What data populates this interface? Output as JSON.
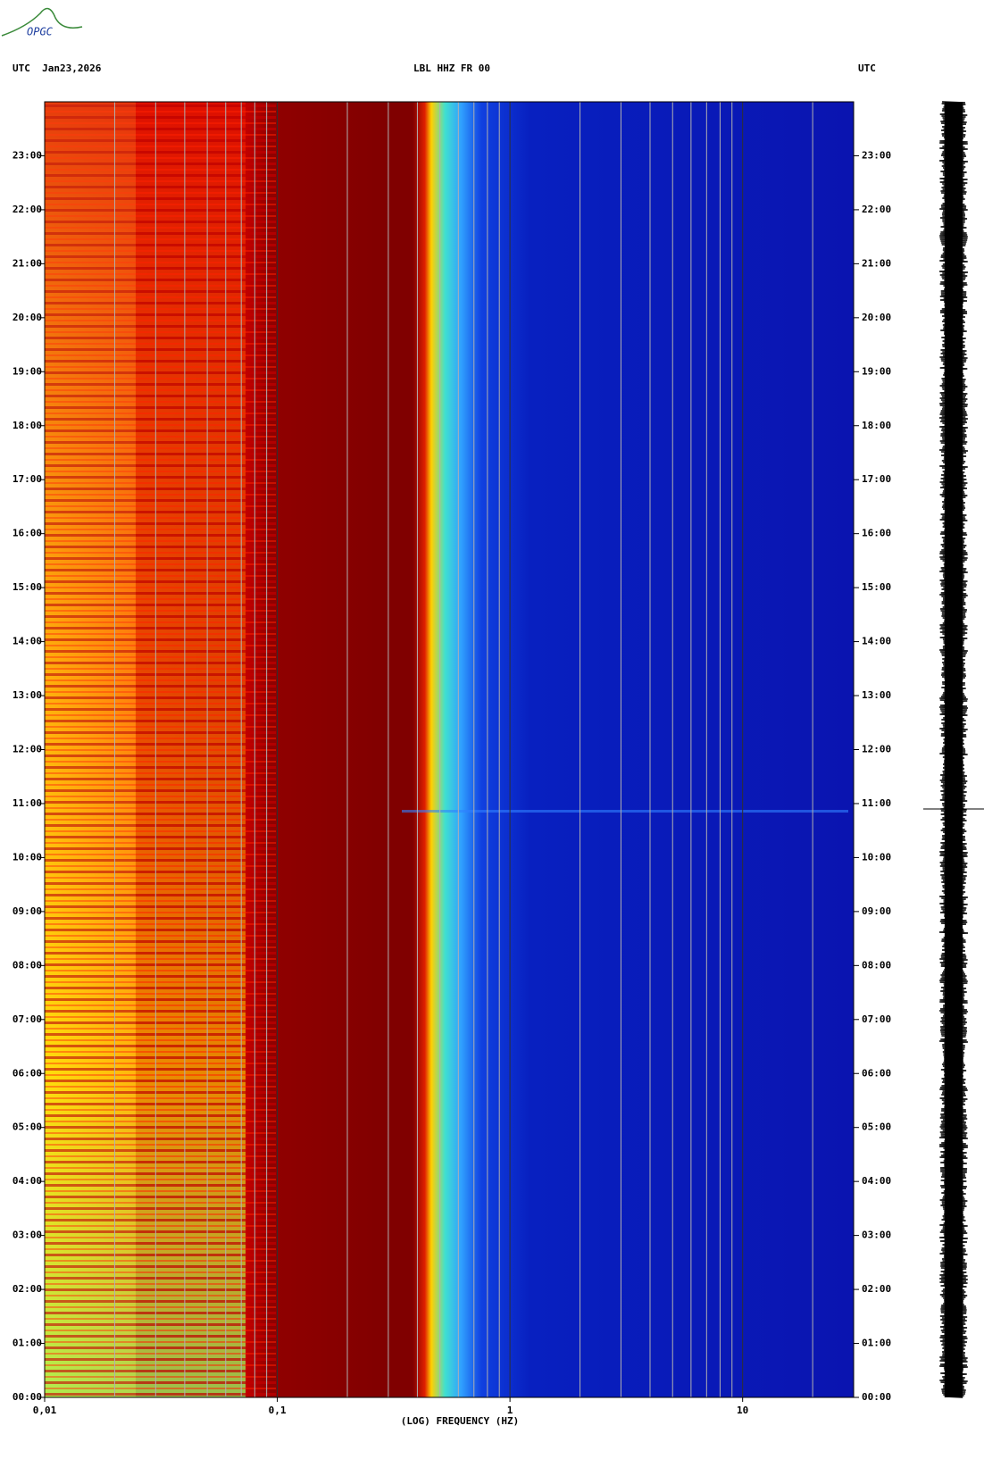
{
  "logo": "OPGC",
  "chart_data": {
    "type": "spectrogram",
    "title": "LBL HHZ FR 00",
    "left_header": "UTC  Jan23,2026",
    "right_header": "UTC",
    "xlabel": "(LOG) FREQUENCY (HZ)",
    "xscale": "log",
    "xlim": [
      0.01,
      30
    ],
    "xticks": [
      {
        "value": 0.01,
        "label": "0,01"
      },
      {
        "value": 0.1,
        "label": "0,1"
      },
      1,
      10
    ],
    "xgrid": [
      0.02,
      0.03,
      0.04,
      0.05,
      0.06,
      0.07,
      0.08,
      0.09,
      0.2,
      0.3,
      0.4,
      0.5,
      0.6,
      0.7,
      0.8,
      0.9,
      2,
      3,
      4,
      5,
      6,
      7,
      8,
      9,
      20
    ],
    "ylim": [
      0,
      24
    ],
    "yticks": [
      {
        "value": 0,
        "label": "00:00"
      },
      {
        "value": 1,
        "label": "01:00"
      },
      {
        "value": 2,
        "label": "02:00"
      },
      {
        "value": 3,
        "label": "03:00"
      },
      {
        "value": 4,
        "label": "04:00"
      },
      {
        "value": 5,
        "label": "05:00"
      },
      {
        "value": 6,
        "label": "06:00"
      },
      {
        "value": 7,
        "label": "07:00"
      },
      {
        "value": 8,
        "label": "08:00"
      },
      {
        "value": 9,
        "label": "09:00"
      },
      {
        "value": 10,
        "label": "10:00"
      },
      {
        "value": 11,
        "label": "11:00"
      },
      {
        "value": 12,
        "label": "12:00"
      },
      {
        "value": 13,
        "label": "13:00"
      },
      {
        "value": 14,
        "label": "14:00"
      },
      {
        "value": 15,
        "label": "15:00"
      },
      {
        "value": 16,
        "label": "16:00"
      },
      {
        "value": 17,
        "label": "17:00"
      },
      {
        "value": 18,
        "label": "18:00"
      },
      {
        "value": 19,
        "label": "19:00"
      },
      {
        "value": 20,
        "label": "20:00"
      },
      {
        "value": 21,
        "label": "21:00"
      },
      {
        "value": 22,
        "label": "22:00"
      },
      {
        "value": 23,
        "label": "23:00"
      }
    ]
  }
}
